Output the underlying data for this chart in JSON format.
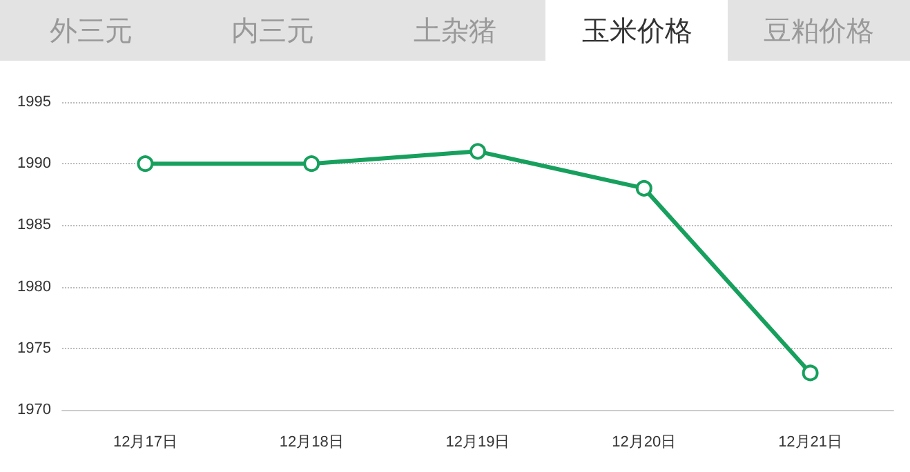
{
  "chart_data": {
    "type": "line",
    "annotations": [
      "外三元",
      "内三元",
      "土杂猪",
      "玉米价格",
      "豆粕价格"
    ],
    "categories": [
      "12月17日",
      "12月18日",
      "12月19日",
      "12月20日",
      "12月21日"
    ],
    "series": [
      {
        "color": "#17a05d",
        "values": [
          1990,
          1990,
          1991,
          1988,
          1973
        ]
      }
    ],
    "ylim": [
      1970,
      1995
    ],
    "yticks": [
      1970,
      1975,
      1980,
      1985,
      1990,
      1995
    ],
    "grid": "y",
    "marker": "circle",
    "line_style": "solid"
  }
}
